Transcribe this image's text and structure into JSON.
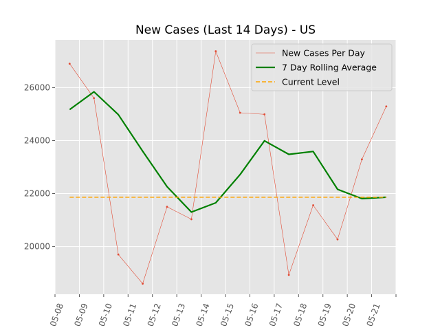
{
  "chart_data": {
    "type": "line",
    "title": "New Cases (Last 14 Days) - US",
    "xlabel": "",
    "ylabel": "",
    "x_ticks": [
      "05-08",
      "05-09",
      "05-10",
      "05-11",
      "05-12",
      "05-13",
      "05-14",
      "05-15",
      "05-16",
      "05-17",
      "05-18",
      "05-19",
      "05-20",
      "05-21"
    ],
    "y_ticks": [
      20000,
      22000,
      24000,
      26000
    ],
    "ylim": [
      18200,
      27800
    ],
    "xlim": [
      0,
      14
    ],
    "grid": true,
    "legend_position": "top-right",
    "series": [
      {
        "name": "New Cases Per Day",
        "style": "thin-line-markers",
        "color": "#E24A33",
        "x": [
          0.6,
          1.6,
          2.6,
          3.6,
          4.6,
          5.6,
          6.6,
          7.6,
          8.6,
          9.6,
          10.6,
          11.6,
          12.6,
          13.6
        ],
        "values": [
          26900,
          25600,
          19700,
          18600,
          21500,
          21030,
          27370,
          25050,
          24990,
          18930,
          21560,
          20270,
          23290,
          25290
        ]
      },
      {
        "name": "7 Day Rolling Average",
        "style": "thick-line",
        "color": "#008000",
        "x": [
          0.6,
          1.6,
          2.6,
          3.6,
          4.6,
          5.6,
          6.6,
          7.6,
          8.6,
          9.6,
          10.6,
          11.6,
          12.6,
          13.6
        ],
        "values": [
          25170,
          25840,
          24980,
          23600,
          22260,
          21300,
          21650,
          22720,
          23990,
          23480,
          23590,
          22160,
          21810,
          21860
        ]
      },
      {
        "name": "Current Level",
        "style": "dashed",
        "color": "#FFA500",
        "x": [
          0.6,
          13.6
        ],
        "values": [
          21860,
          21860
        ]
      }
    ]
  }
}
